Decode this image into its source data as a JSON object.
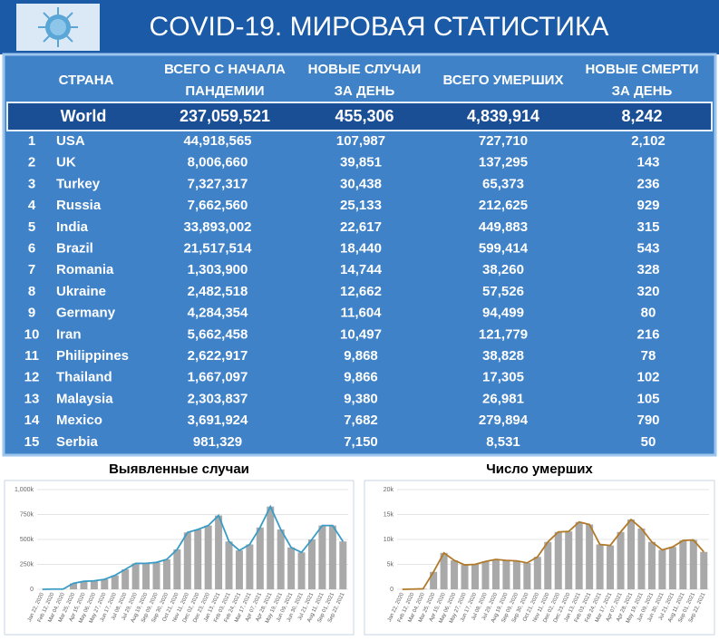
{
  "header": {
    "title": "COVID-19. МИРОВАЯ СТАТИСТИКА"
  },
  "table": {
    "headers": [
      [
        "СТРАНА"
      ],
      [
        "ВСЕГО С НАЧАЛА",
        "ПАНДЕМИИ"
      ],
      [
        "НОВЫЕ СЛУЧАИ",
        "ЗА ДЕНЬ"
      ],
      [
        "ВСЕГО УМЕРШИХ"
      ],
      [
        "НОВЫЕ СМЕРТИ",
        "ЗА ДЕНЬ"
      ]
    ],
    "world": [
      "World",
      "237,059,521",
      "455,306",
      "4,839,914",
      "8,242"
    ],
    "rows": [
      [
        "1",
        "USA",
        "44,918,565",
        "107,987",
        "727,710",
        "2,102"
      ],
      [
        "2",
        "UK",
        "8,006,660",
        "39,851",
        "137,295",
        "143"
      ],
      [
        "3",
        "Turkey",
        "7,327,317",
        "30,438",
        "65,373",
        "236"
      ],
      [
        "4",
        "Russia",
        "7,662,560",
        "25,133",
        "212,625",
        "929"
      ],
      [
        "5",
        "India",
        "33,893,002",
        "22,617",
        "449,883",
        "315"
      ],
      [
        "6",
        "Brazil",
        "21,517,514",
        "18,440",
        "599,414",
        "543"
      ],
      [
        "7",
        "Romania",
        "1,303,900",
        "14,744",
        "38,260",
        "328"
      ],
      [
        "8",
        "Ukraine",
        "2,482,518",
        "12,662",
        "57,526",
        "320"
      ],
      [
        "9",
        "Germany",
        "4,284,354",
        "11,604",
        "94,499",
        "80"
      ],
      [
        "10",
        "Iran",
        "5,662,458",
        "10,497",
        "121,779",
        "216"
      ],
      [
        "11",
        "Philippines",
        "2,622,917",
        "9,868",
        "38,828",
        "78"
      ],
      [
        "12",
        "Thailand",
        "1,667,097",
        "9,866",
        "17,305",
        "102"
      ],
      [
        "13",
        "Malaysia",
        "2,303,837",
        "9,380",
        "26,981",
        "105"
      ],
      [
        "14",
        "Mexico",
        "3,691,924",
        "7,682",
        "279,894",
        "790"
      ],
      [
        "15",
        "Serbia",
        "981,329",
        "7,150",
        "8,531",
        "50"
      ]
    ]
  },
  "chart_data": [
    {
      "type": "line",
      "title": "Выявленные случаи",
      "categories": [
        "Jan 22, 2020",
        "Feb 12, 2020",
        "Mar 04, 2020",
        "Mar 25, 2020",
        "Apr 15, 2020",
        "May 06, 2020",
        "May 27, 2020",
        "Jun 17, 2020",
        "Jul 08, 2020",
        "Jul 29, 2020",
        "Aug 19, 2020",
        "Sep 09, 2020",
        "Sep 30, 2020",
        "Oct 21, 2020",
        "Nov 11, 2020",
        "Dec 02, 2020",
        "Dec 23, 2020",
        "Jan 13, 2021",
        "Feb 03, 2021",
        "Feb 24, 2021",
        "Mar 17, 2021",
        "Apr 07, 2021",
        "Apr 28, 2021",
        "May 19, 2021",
        "Jun 09, 2021",
        "Jun 30, 2021",
        "Jul 21, 2021",
        "Aug 11, 2021",
        "Sep 01, 2021",
        "Sep 22, 2021"
      ],
      "series": [
        {
          "color": "#3a9cc4",
          "bar_color": "#a9a9a9",
          "values": [
            0,
            2000,
            2000,
            60000,
            80000,
            85000,
            100000,
            140000,
            200000,
            260000,
            260000,
            270000,
            300000,
            400000,
            570000,
            600000,
            640000,
            740000,
            480000,
            390000,
            450000,
            620000,
            830000,
            600000,
            420000,
            370000,
            500000,
            640000,
            640000,
            480000
          ]
        }
      ],
      "ylim": [
        0,
        1000000
      ],
      "yticks": [
        0,
        {
          "value": 250000,
          "label": "250k"
        },
        {
          "value": 500000,
          "label": "500k"
        },
        {
          "value": 750000,
          "label": "750k"
        },
        {
          "value": 1000000,
          "label": "1,000k"
        }
      ]
    },
    {
      "type": "line",
      "title": "Число умерших",
      "categories": [
        "Jan 22, 2020",
        "Feb 12, 2020",
        "Mar 04, 2020",
        "Mar 25, 2020",
        "Apr 15, 2020",
        "May 06, 2020",
        "May 27, 2020",
        "Jun 17, 2020",
        "Jul 08, 2020",
        "Jul 29, 2020",
        "Aug 19, 2020",
        "Sep 09, 2020",
        "Sep 30, 2020",
        "Oct 21, 2020",
        "Nov 11, 2020",
        "Dec 02, 2020",
        "Dec 23, 2020",
        "Jan 13, 2021",
        "Feb 03, 2021",
        "Feb 24, 2021",
        "Mar 17, 2021",
        "Apr 07, 2021",
        "Apr 28, 2021",
        "May 19, 2021",
        "Jun 09, 2021",
        "Jun 30, 2021",
        "Jul 21, 2021",
        "Aug 11, 2021",
        "Sep 01, 2021",
        "Sep 22, 2021"
      ],
      "series": [
        {
          "color": "#b07a2a",
          "bar_color": "#a9a9a9",
          "values": [
            0,
            50,
            100,
            3500,
            7300,
            5800,
            4900,
            5000,
            5600,
            6000,
            5800,
            5700,
            5300,
            6500,
            9500,
            11500,
            11600,
            13500,
            13000,
            9000,
            8800,
            11500,
            14000,
            12200,
            9500,
            7900,
            8500,
            9800,
            9900,
            7500
          ]
        }
      ],
      "ylim": [
        0,
        20000
      ],
      "yticks": [
        0,
        {
          "value": 5000,
          "label": "5k"
        },
        {
          "value": 10000,
          "label": "10k"
        },
        {
          "value": 15000,
          "label": "15k"
        },
        {
          "value": 20000,
          "label": "20k"
        }
      ]
    }
  ]
}
